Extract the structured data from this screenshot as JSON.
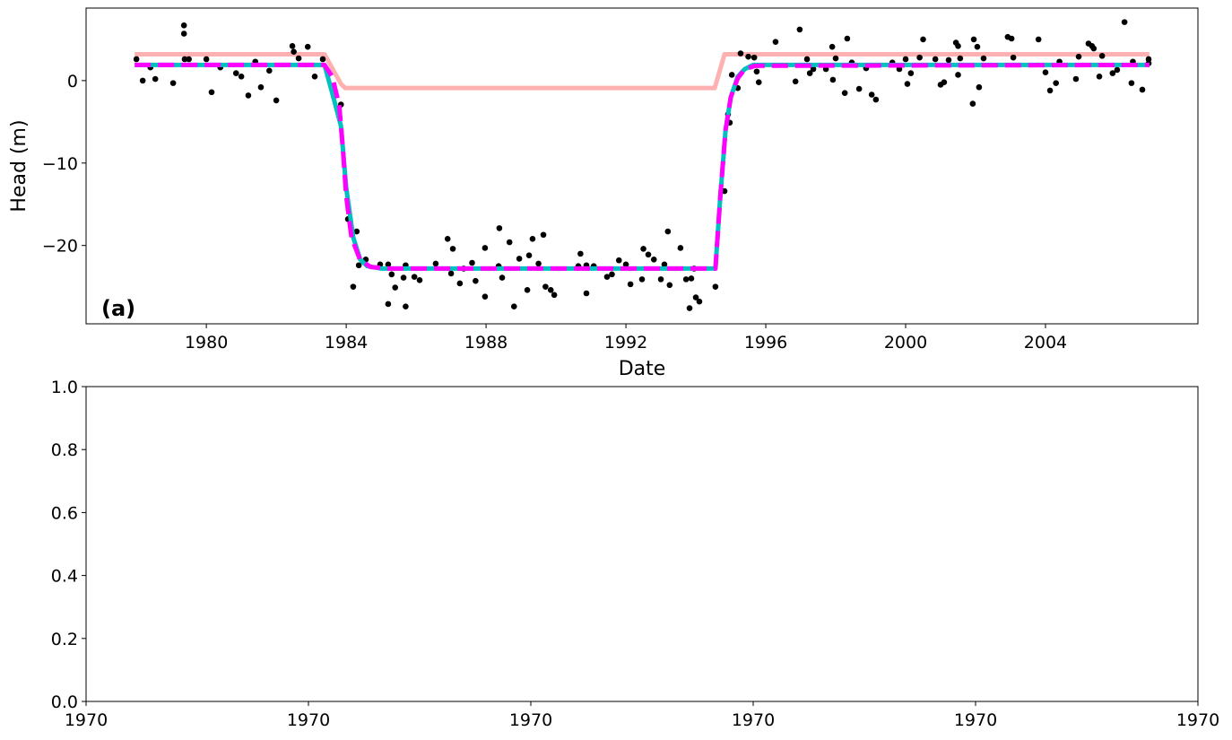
{
  "chart_data": [
    {
      "type": "line",
      "xlabel": "Date",
      "ylabel": "Head (m)",
      "annotation": "(a)",
      "xlim": [
        1976.56,
        2008.36
      ],
      "xticks": [
        1980,
        1984,
        1988,
        1992,
        1996,
        2000,
        2004
      ],
      "ylim": [
        -29.5,
        8.8
      ],
      "yticks": [
        {
          "value": -20,
          "label": "−20"
        },
        {
          "value": -10,
          "label": "−10"
        },
        0
      ],
      "series": [
        {
          "mode": "line",
          "color": "#ffb0b0",
          "x": [
            1977.95,
            1983.38,
            1983.6,
            1983.85,
            1983.97,
            1994.54,
            1994.82,
            2006.97
          ],
          "values": [
            3.2,
            3.2,
            1.5,
            -0.4,
            -0.9,
            -0.9,
            3.2,
            3.2
          ]
        },
        {
          "mode": "scatter",
          "color": "#000000",
          "x": [
            1978.0,
            1978.18,
            1978.4,
            1978.54,
            1979.05,
            1979.36,
            1979.36,
            1979.38,
            1979.5,
            1980.0,
            1980.15,
            1980.4,
            1980.85,
            1981.0,
            1981.2,
            1981.4,
            1981.56,
            1981.8,
            1982.0,
            1982.46,
            1982.5,
            1982.64,
            1982.9,
            1983.1,
            1983.33,
            1983.85,
            1984.05,
            1984.3,
            1984.2,
            1984.36,
            1984.56,
            1984.97,
            1985.2,
            1985.2,
            1985.3,
            1985.4,
            1985.64,
            1985.7,
            1985.7,
            1985.95,
            1986.1,
            1986.56,
            1986.9,
            1987.05,
            1987.0,
            1987.25,
            1987.36,
            1987.6,
            1987.7,
            1987.97,
            1987.97,
            1988.38,
            1988.36,
            1988.46,
            1988.67,
            1988.8,
            1988.95,
            1989.18,
            1989.23,
            1989.33,
            1989.5,
            1989.64,
            1989.7,
            1989.85,
            1989.95,
            1990.64,
            1990.7,
            1990.87,
            1990.87,
            1991.08,
            1991.46,
            1991.6,
            1991.8,
            1992.0,
            1992.13,
            1992.5,
            1992.46,
            1992.64,
            1992.8,
            1993.0,
            1993.1,
            1993.2,
            1993.25,
            1993.56,
            1993.72,
            1993.82,
            1993.87,
            1993.95,
            1994.0,
            1994.1,
            1994.56,
            1994.82,
            1994.92,
            1994.97,
            1995.03,
            1995.2,
            1995.28,
            1995.5,
            1995.67,
            1995.74,
            1995.8,
            1996.28,
            1996.85,
            1996.97,
            1997.18,
            1997.26,
            1997.36,
            1997.72,
            1997.9,
            1997.92,
            1998.0,
            1998.26,
            1998.33,
            1998.46,
            1998.67,
            1998.87,
            1999.03,
            1999.15,
            1999.62,
            1999.82,
            2000.0,
            2000.05,
            2000.15,
            2000.4,
            2000.5,
            2000.85,
            2001.0,
            2001.1,
            2001.23,
            2001.44,
            2001.5,
            2001.5,
            2001.56,
            2001.92,
            2001.95,
            2002.05,
            2002.1,
            2002.23,
            2002.92,
            2003.03,
            2003.08,
            2003.8,
            2004.0,
            2004.13,
            2004.3,
            2004.4,
            2004.87,
            2004.95,
            2005.23,
            2005.33,
            2005.38,
            2005.54,
            2005.62,
            2005.92,
            2006.05,
            2006.26,
            2006.46,
            2006.5,
            2006.77,
            2006.95,
            2006.95
          ],
          "values": [
            2.6,
            0.0,
            1.6,
            0.2,
            -0.3,
            6.7,
            5.7,
            2.6,
            2.6,
            2.6,
            -1.4,
            1.6,
            0.9,
            0.5,
            -1.8,
            2.3,
            -0.8,
            1.2,
            -2.4,
            4.2,
            3.5,
            2.7,
            4.1,
            0.5,
            2.6,
            -2.9,
            -16.8,
            -18.3,
            -25.0,
            -22.4,
            -21.7,
            -22.3,
            -22.3,
            -27.1,
            -23.5,
            -25.1,
            -23.9,
            -27.4,
            -22.4,
            -23.8,
            -24.2,
            -22.2,
            -19.2,
            -20.4,
            -23.4,
            -24.6,
            -22.8,
            -22.1,
            -24.3,
            -20.3,
            -26.2,
            -17.9,
            -22.5,
            -23.9,
            -19.6,
            -27.4,
            -21.6,
            -25.4,
            -21.2,
            -19.2,
            -22.2,
            -18.7,
            -25.0,
            -25.4,
            -26.0,
            -22.5,
            -21.0,
            -22.4,
            -25.8,
            -22.5,
            -23.8,
            -23.5,
            -21.8,
            -22.3,
            -24.7,
            -20.4,
            -24.1,
            -21.1,
            -21.7,
            -24.1,
            -22.3,
            -18.3,
            -24.8,
            -20.3,
            -24.1,
            -27.6,
            -24.0,
            -22.8,
            -26.3,
            -26.8,
            -25.0,
            -13.4,
            -4.1,
            -5.1,
            0.7,
            -0.9,
            3.3,
            2.9,
            2.8,
            1.1,
            -0.2,
            4.7,
            -0.1,
            6.2,
            2.6,
            0.9,
            1.4,
            1.4,
            4.1,
            0.1,
            2.7,
            -1.5,
            5.1,
            2.2,
            -1.0,
            1.5,
            -1.7,
            -2.3,
            2.2,
            1.4,
            2.6,
            -0.4,
            0.9,
            2.8,
            5.0,
            2.6,
            -0.5,
            -0.2,
            2.5,
            4.6,
            4.2,
            0.7,
            2.7,
            -2.8,
            5.0,
            4.1,
            -0.8,
            2.7,
            5.3,
            5.1,
            2.8,
            5.0,
            1.0,
            -1.2,
            -0.3,
            2.3,
            0.2,
            2.9,
            4.5,
            4.2,
            3.9,
            0.5,
            3.0,
            0.9,
            1.3,
            7.1,
            -0.3,
            2.3,
            -1.1,
            2.6,
            2.1
          ]
        },
        {
          "mode": "line",
          "color": "#00c0c0",
          "x": [
            1977.95,
            1983.38,
            1983.6,
            1983.85,
            1984.0,
            1984.2,
            1984.4,
            1984.6,
            1985.0,
            1994.56,
            1994.7,
            1994.85,
            1995.0,
            1995.2,
            1995.4,
            1995.64,
            2006.97
          ],
          "values": [
            1.9,
            1.9,
            -1.5,
            -5.5,
            -13,
            -19,
            -21.7,
            -22.5,
            -22.8,
            -22.8,
            -14,
            -6,
            -2,
            0.5,
            1.4,
            1.9,
            1.9
          ]
        },
        {
          "mode": "line",
          "dash": true,
          "color": "#ff00ff",
          "x": [
            1977.95,
            1983.38,
            1983.6,
            1983.8,
            1983.9,
            1984.0,
            1984.15,
            1984.4,
            1984.7,
            1985.2,
            1994.56,
            1994.7,
            1994.85,
            1995.0,
            1995.2,
            1995.4,
            1995.7,
            2006.97
          ],
          "values": [
            1.9,
            1.9,
            0.5,
            -3,
            -8,
            -14,
            -19,
            -21.8,
            -22.6,
            -22.8,
            -22.8,
            -14,
            -6,
            -2,
            0.3,
            1.4,
            1.8,
            1.9
          ]
        }
      ]
    },
    {
      "type": "line",
      "xlim": [
        0,
        1
      ],
      "xticks": [
        {
          "value": 0,
          "label": "1970"
        },
        {
          "value": 0.2,
          "label": "1970"
        },
        {
          "value": 0.4,
          "label": "1970"
        },
        {
          "value": 0.6,
          "label": "1970"
        },
        {
          "value": 0.8,
          "label": "1970"
        },
        {
          "value": 1,
          "label": "1970"
        }
      ],
      "ylim": [
        0,
        1
      ],
      "yticks": [
        {
          "value": 0,
          "label": "0.0"
        },
        {
          "value": 0.2,
          "label": "0.2"
        },
        {
          "value": 0.4,
          "label": "0.4"
        },
        {
          "value": 0.6,
          "label": "0.6"
        },
        {
          "value": 0.8,
          "label": "0.8"
        },
        {
          "value": 1,
          "label": "1.0"
        }
      ],
      "series": []
    }
  ]
}
